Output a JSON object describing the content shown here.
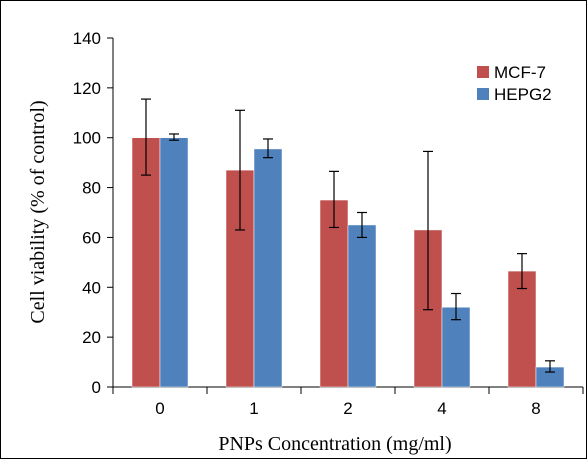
{
  "chart_data": {
    "type": "bar",
    "title": "",
    "xlabel": "PNPs Concentration (mg/ml)",
    "ylabel": "Cell viability (% of control)",
    "categories": [
      "0",
      "1",
      "2",
      "4",
      "8"
    ],
    "ylim": [
      0,
      140
    ],
    "yticks": [
      0,
      20,
      40,
      60,
      80,
      100,
      120,
      140
    ],
    "grid": false,
    "legend": "top-right",
    "series": [
      {
        "name": "MCF-7",
        "color": "#C0504D",
        "values": [
          100,
          87,
          75,
          63,
          46.5
        ],
        "err_low": [
          85,
          63,
          64,
          31,
          39.5
        ],
        "err_high": [
          115.5,
          111,
          86.5,
          94.5,
          53.5
        ]
      },
      {
        "name": "HEPG2",
        "color": "#4F81BD",
        "values": [
          100,
          95.5,
          65,
          32,
          8
        ],
        "err_low": [
          99,
          92,
          60,
          27,
          6
        ],
        "err_high": [
          101.5,
          99.5,
          70,
          37.5,
          10.5
        ]
      }
    ]
  }
}
